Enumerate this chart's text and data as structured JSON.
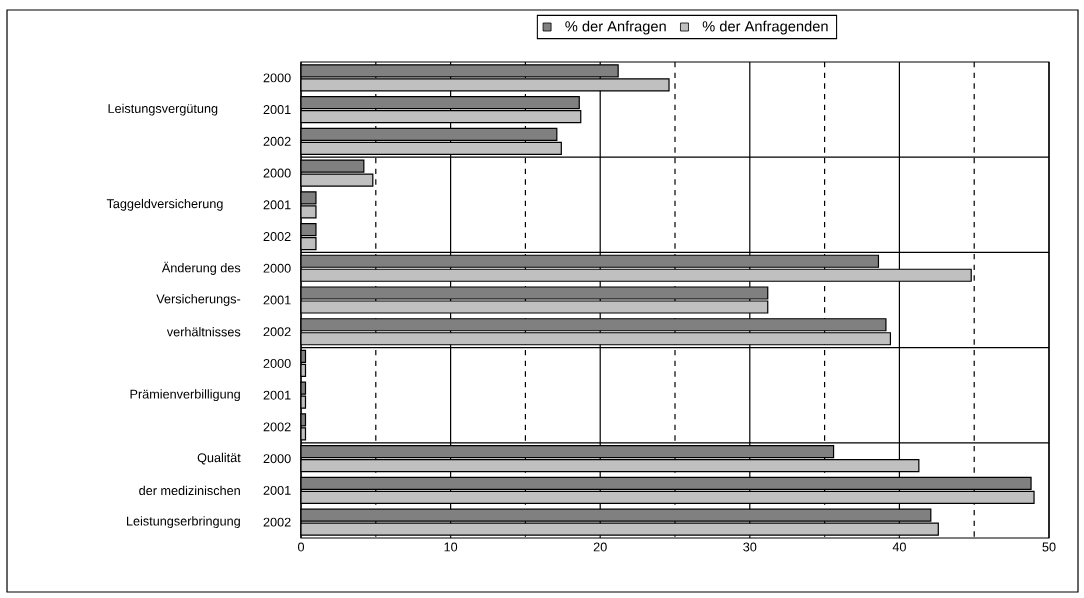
{
  "chart_data": {
    "type": "bar",
    "orientation": "horizontal",
    "categories": [
      "2000",
      "2001",
      "2002",
      "2000",
      "2001",
      "2002",
      "2000",
      "2001",
      "2002",
      "2000",
      "2001",
      "2002",
      "2000",
      "2001",
      "2002"
    ],
    "series": [
      {
        "name": "% der Anfragen",
        "color": "#808080",
        "values": [
          21.2,
          18.6,
          17.1,
          4.2,
          1.0,
          1.0,
          38.6,
          31.2,
          39.1,
          0.3,
          0.3,
          0.3,
          35.6,
          48.8,
          42.1
        ]
      },
      {
        "name": "% der Anfragenden",
        "color": "#c0c0c0",
        "values": [
          24.6,
          18.7,
          17.4,
          4.8,
          1.0,
          1.0,
          44.8,
          31.2,
          39.4,
          0.3,
          0.3,
          0.3,
          41.3,
          49.0,
          42.6
        ]
      }
    ],
    "annotations": [
      "Leistungsvergütung",
      "Taggeldversicherung",
      "Änderung des",
      "Versicherungs-",
      "verhältnisses",
      "Prämienverbilligung",
      "Qualität",
      "der medizinischen",
      "Leistungserbringung"
    ],
    "xlim": [
      0,
      50
    ],
    "xticks": [
      0,
      10,
      20,
      30,
      40,
      50
    ],
    "grid": "x",
    "legend": "top"
  }
}
